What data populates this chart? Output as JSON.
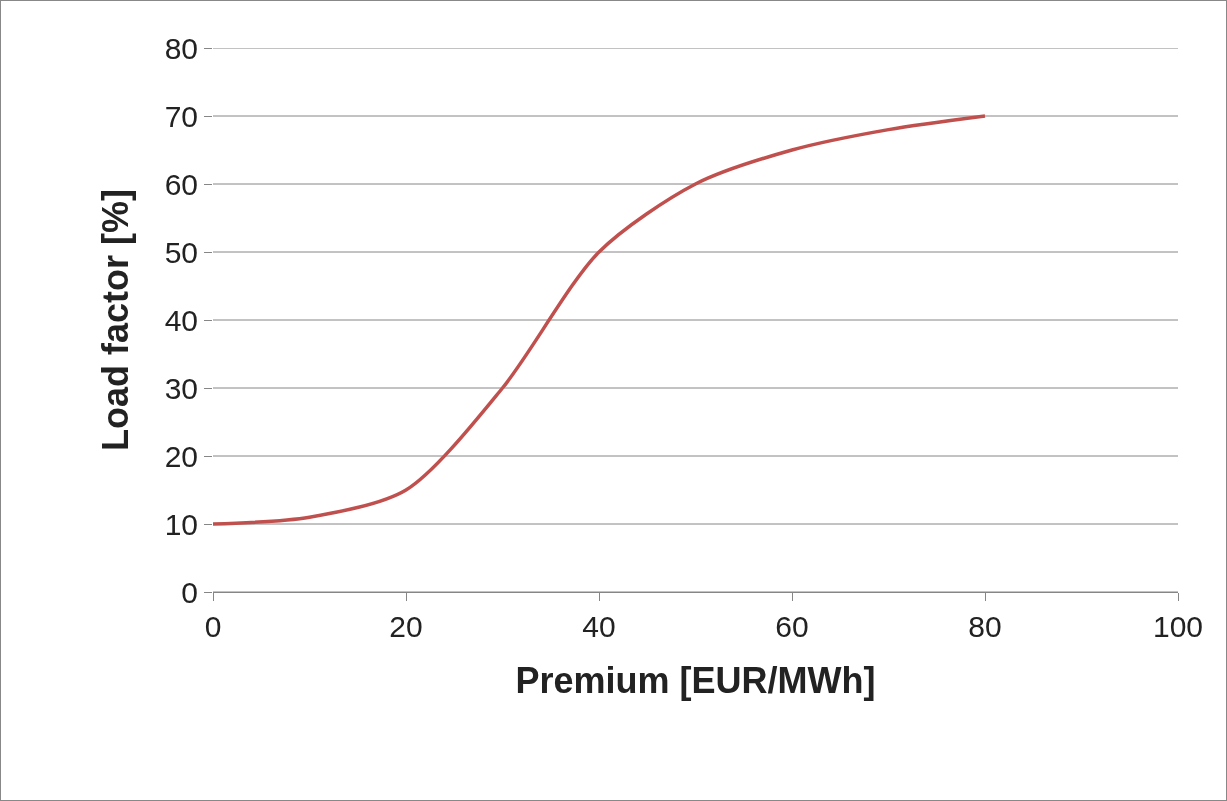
{
  "chart_data": {
    "type": "line",
    "xlabel": "Premium [EUR/MWh]",
    "ylabel": "Load factor [%]",
    "x": [
      0,
      10,
      20,
      30,
      40,
      50,
      60,
      70,
      80
    ],
    "series": [
      {
        "color": "#c0504d",
        "values": [
          10,
          11,
          15,
          30,
          50,
          60,
          65,
          68,
          70
        ]
      }
    ],
    "xlim": [
      0,
      100
    ],
    "xticks": [
      0,
      20,
      40,
      60,
      80,
      100
    ],
    "ylim": [
      0,
      80
    ],
    "yticks": [
      0,
      10,
      20,
      30,
      40,
      50,
      60,
      70,
      80
    ],
    "grid": "y",
    "marker": "none",
    "line_style": "solid"
  }
}
